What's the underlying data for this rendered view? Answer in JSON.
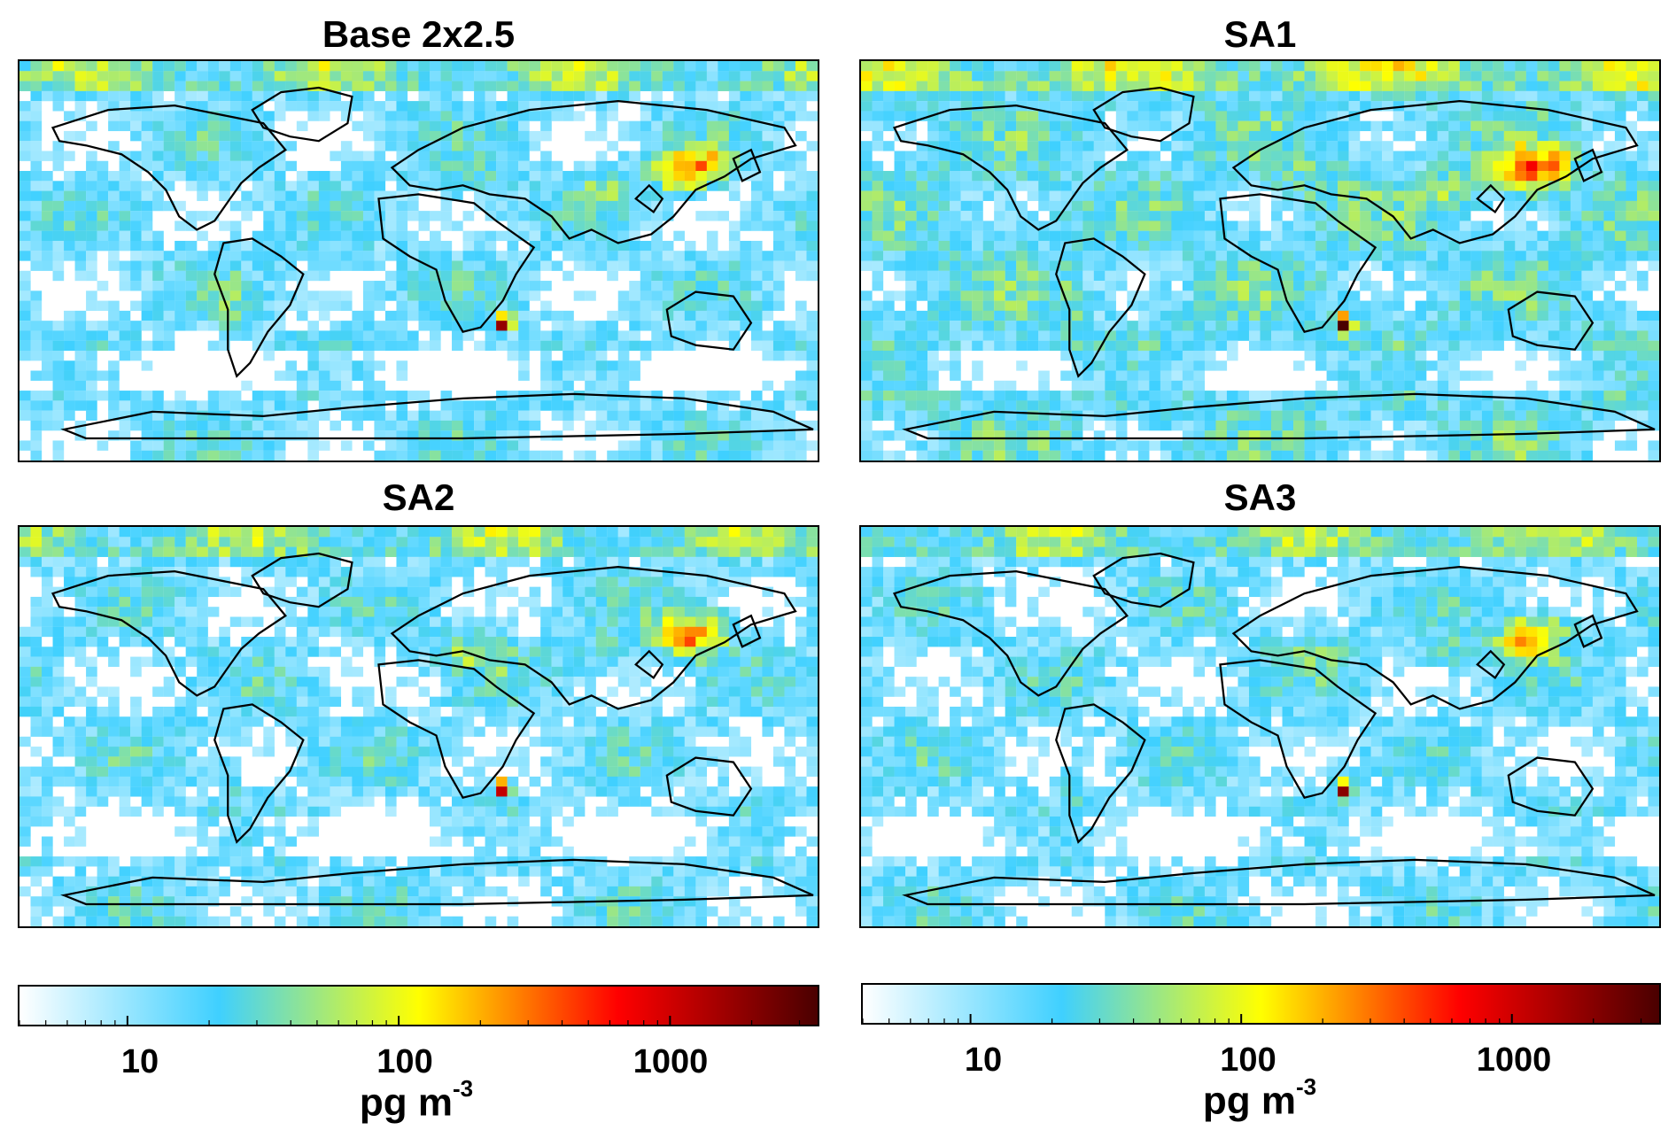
{
  "panels": [
    {
      "id": "base",
      "title": "Base 2x2.5",
      "variant": 0
    },
    {
      "id": "sa1",
      "title": "SA1",
      "variant": 1
    },
    {
      "id": "sa2",
      "title": "SA2",
      "variant": 2
    },
    {
      "id": "sa3",
      "title": "SA3",
      "variant": 3
    }
  ],
  "colorbar": {
    "tick_labels": [
      "10",
      "100",
      "1000"
    ],
    "unit_main": "pg m",
    "unit_exp": "-3",
    "scale": "log",
    "range": [
      4,
      3500
    ],
    "colors": [
      "#ffffff",
      "#3fd0ff",
      "#ffff00",
      "#ff0000",
      "#4a0000"
    ]
  }
}
